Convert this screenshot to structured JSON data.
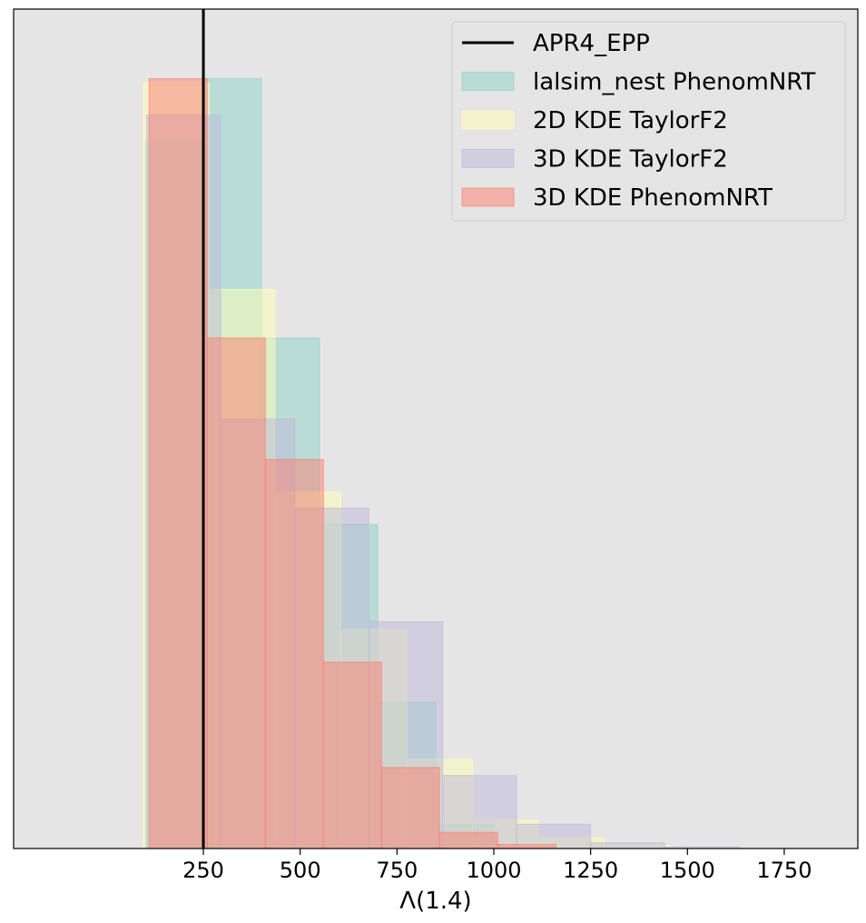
{
  "chart_data": {
    "type": "histogram",
    "title": "",
    "xlabel": "Λ(1.4)",
    "ylabel": "",
    "xlim": [
      -240,
      1940
    ],
    "ylim": [
      0,
      1
    ],
    "xticks": [
      250,
      500,
      750,
      1000,
      1250,
      1500,
      1750
    ],
    "xtick_labels": [
      "250",
      "500",
      "750",
      "1000",
      "1250",
      "1500",
      "1750"
    ],
    "yticks": [],
    "grid": false,
    "background": "#e5e5e5",
    "legend_position": "top-right",
    "vertical_line": {
      "name": "APR4_EPP",
      "x": 250,
      "color": "#000000"
    },
    "series": [
      {
        "name": "lalsim_nest PhenomNRT",
        "color": "#8dd3c7",
        "edges": [
          100,
          250,
          400,
          550,
          700,
          850,
          1000
        ],
        "heights": [
          0.875,
          0.95,
          0.63,
          0.4,
          0.18,
          0.03
        ]
      },
      {
        "name": "2D KDE TaylorF2",
        "color": "#ffffb3",
        "edges": [
          95,
          265,
          435,
          605,
          775,
          945,
          1115,
          1285,
          1455
        ],
        "heights": [
          0.945,
          0.69,
          0.44,
          0.27,
          0.11,
          0.035,
          0.013,
          0.004
        ]
      },
      {
        "name": "3D KDE TaylorF2",
        "color": "#bebada",
        "edges": [
          104,
          295,
          486,
          677,
          868,
          1059,
          1250,
          1441,
          1632
        ],
        "heights": [
          0.905,
          0.53,
          0.42,
          0.28,
          0.09,
          0.03,
          0.007,
          0.002
        ]
      },
      {
        "name": "3D KDE PhenomNRT",
        "color": "#fb8072",
        "edges": [
          110,
          260,
          410,
          560,
          710,
          860,
          1010,
          1160
        ],
        "heights": [
          0.95,
          0.63,
          0.48,
          0.23,
          0.1,
          0.02,
          0.005
        ]
      }
    ]
  }
}
